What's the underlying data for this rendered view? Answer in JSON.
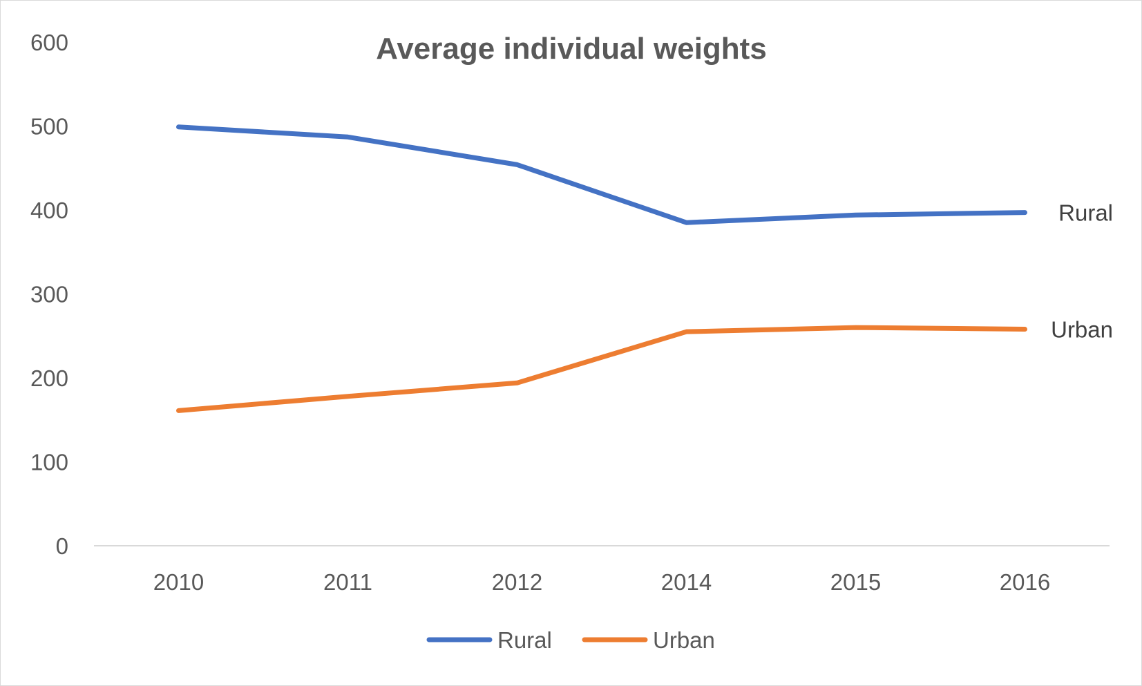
{
  "chart_data": {
    "type": "line",
    "title": "Average individual weights",
    "categories": [
      "2010",
      "2011",
      "2012",
      "2014",
      "2015",
      "2016"
    ],
    "series": [
      {
        "name": "Rural",
        "values": [
          499,
          487,
          454,
          385,
          394,
          397
        ],
        "color": "#4472c4"
      },
      {
        "name": "Urban",
        "values": [
          161,
          178,
          194,
          255,
          260,
          258
        ],
        "color": "#ed7d31"
      }
    ],
    "ylim": [
      0,
      600
    ],
    "yticks": [
      "0",
      "100",
      "200",
      "300",
      "400",
      "500",
      "600"
    ],
    "grid": false,
    "legend": "bottom",
    "end_labels": true
  }
}
